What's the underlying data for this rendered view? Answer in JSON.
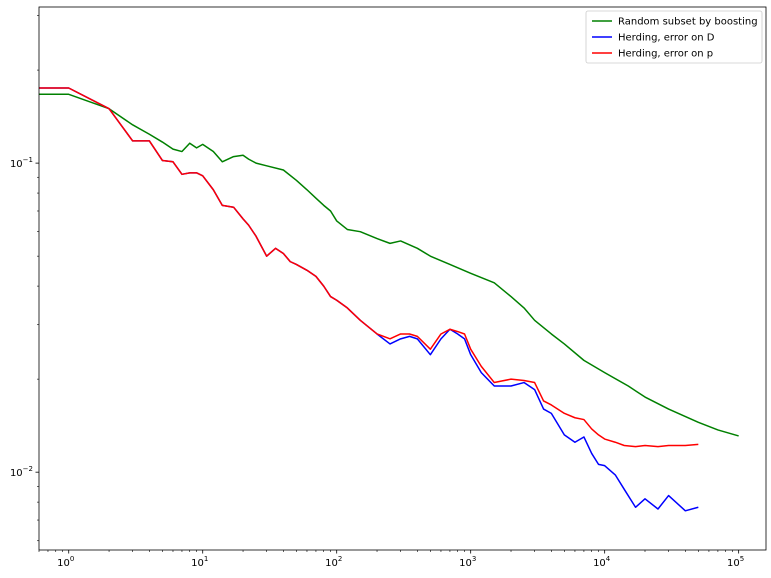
{
  "chart_data": {
    "type": "line",
    "title": "",
    "xlabel": "",
    "ylabel": "",
    "x_scale": "log",
    "y_scale": "log",
    "xlim": [
      0.6,
      160000
    ],
    "ylim": [
      0.0056,
      0.32
    ],
    "grid": false,
    "legend_position": "top-right",
    "x_ticks": [
      {
        "value": 1,
        "base": "10",
        "exp": "0"
      },
      {
        "value": 10,
        "base": "10",
        "exp": "1"
      },
      {
        "value": 100,
        "base": "10",
        "exp": "2"
      },
      {
        "value": 1000,
        "base": "10",
        "exp": "3"
      },
      {
        "value": 10000,
        "base": "10",
        "exp": "4"
      },
      {
        "value": 100000,
        "base": "10",
        "exp": "5"
      }
    ],
    "y_ticks": [
      {
        "value": 0.1,
        "base": "10",
        "exp": "−1"
      },
      {
        "value": 0.01,
        "base": "10",
        "exp": "−2"
      }
    ],
    "series": [
      {
        "name": "Random subset by boosting",
        "color": "#008000",
        "x": [
          0.6,
          1,
          2,
          3,
          4,
          5,
          6,
          7,
          8,
          9,
          10,
          12,
          14,
          17,
          20,
          22,
          25,
          30,
          40,
          50,
          60,
          70,
          80,
          90,
          100,
          120,
          150,
          200,
          250,
          300,
          400,
          500,
          700,
          1000,
          1500,
          2000,
          2500,
          3000,
          4000,
          5000,
          7000,
          10000,
          15000,
          20000,
          30000,
          50000,
          70000,
          100000
        ],
        "y": [
          0.167,
          0.167,
          0.15,
          0.133,
          0.124,
          0.117,
          0.111,
          0.109,
          0.116,
          0.112,
          0.115,
          0.109,
          0.101,
          0.105,
          0.106,
          0.103,
          0.1,
          0.098,
          0.095,
          0.088,
          0.082,
          0.077,
          0.073,
          0.07,
          0.065,
          0.061,
          0.06,
          0.057,
          0.055,
          0.056,
          0.053,
          0.05,
          0.047,
          0.044,
          0.041,
          0.037,
          0.034,
          0.031,
          0.028,
          0.026,
          0.023,
          0.021,
          0.019,
          0.0175,
          0.016,
          0.0145,
          0.0137,
          0.0131
        ]
      },
      {
        "name": "Herding, error on D",
        "color": "#0000ff",
        "x": [
          0.6,
          1,
          2,
          3,
          4,
          5,
          6,
          7,
          8,
          9,
          10,
          12,
          14,
          17,
          20,
          22,
          25,
          30,
          35,
          40,
          45,
          50,
          60,
          70,
          80,
          90,
          100,
          120,
          150,
          200,
          250,
          300,
          350,
          400,
          500,
          600,
          700,
          800,
          900,
          1000,
          1200,
          1500,
          2000,
          2500,
          3000,
          3500,
          4000,
          5000,
          6000,
          7000,
          8000,
          9000,
          10000,
          12000,
          14000,
          17000,
          20000,
          25000,
          30000,
          40000,
          50000
        ],
        "y": [
          0.175,
          0.175,
          0.15,
          0.118,
          0.118,
          0.102,
          0.101,
          0.092,
          0.093,
          0.093,
          0.091,
          0.082,
          0.073,
          0.072,
          0.066,
          0.063,
          0.058,
          0.05,
          0.053,
          0.051,
          0.048,
          0.047,
          0.045,
          0.043,
          0.04,
          0.037,
          0.036,
          0.034,
          0.031,
          0.028,
          0.026,
          0.027,
          0.0275,
          0.027,
          0.024,
          0.027,
          0.029,
          0.028,
          0.027,
          0.024,
          0.021,
          0.019,
          0.019,
          0.0195,
          0.0185,
          0.016,
          0.0155,
          0.0132,
          0.0125,
          0.013,
          0.0115,
          0.0106,
          0.0105,
          0.0098,
          0.0088,
          0.0077,
          0.0082,
          0.0076,
          0.0084,
          0.0075,
          0.0077
        ]
      },
      {
        "name": "Herding, error on p",
        "color": "#ff0000",
        "x": [
          0.6,
          1,
          2,
          3,
          4,
          5,
          6,
          7,
          8,
          9,
          10,
          12,
          14,
          17,
          20,
          22,
          25,
          30,
          35,
          40,
          45,
          50,
          60,
          70,
          80,
          90,
          100,
          120,
          150,
          200,
          250,
          300,
          350,
          400,
          500,
          600,
          700,
          800,
          900,
          1000,
          1200,
          1500,
          2000,
          2500,
          3000,
          3500,
          4000,
          5000,
          6000,
          7000,
          8000,
          9000,
          10000,
          12000,
          14000,
          17000,
          20000,
          25000,
          30000,
          40000,
          50000
        ],
        "y": [
          0.175,
          0.175,
          0.15,
          0.118,
          0.118,
          0.102,
          0.101,
          0.092,
          0.093,
          0.093,
          0.091,
          0.082,
          0.073,
          0.072,
          0.066,
          0.063,
          0.058,
          0.05,
          0.053,
          0.051,
          0.048,
          0.047,
          0.045,
          0.043,
          0.04,
          0.037,
          0.036,
          0.034,
          0.031,
          0.028,
          0.027,
          0.028,
          0.028,
          0.0275,
          0.025,
          0.028,
          0.029,
          0.0285,
          0.028,
          0.025,
          0.022,
          0.0195,
          0.02,
          0.0198,
          0.0195,
          0.017,
          0.0165,
          0.0155,
          0.015,
          0.0148,
          0.0138,
          0.0132,
          0.0128,
          0.0125,
          0.0122,
          0.0121,
          0.0122,
          0.0121,
          0.0122,
          0.0122,
          0.0123
        ]
      }
    ]
  }
}
